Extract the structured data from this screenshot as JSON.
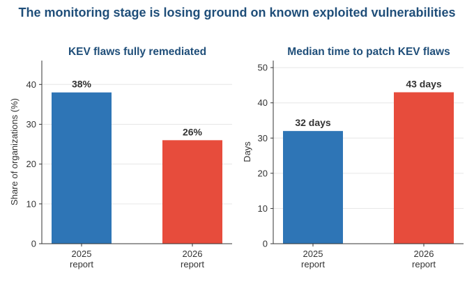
{
  "title": "The monitoring stage is losing ground on known exploited vulnerabilities",
  "chart_data": [
    {
      "type": "bar",
      "title": "KEV flaws fully remediated",
      "ylabel": "Share of organizations (%)",
      "xlabel": "",
      "categories": [
        [
          "2025",
          "report"
        ],
        [
          "2026",
          "report"
        ]
      ],
      "values": [
        38,
        26
      ],
      "data_labels": [
        "38%",
        "26%"
      ],
      "colors": [
        "#2e75b6",
        "#e74c3c"
      ],
      "ylim": [
        0,
        46
      ],
      "yticks": [
        0,
        10,
        20,
        30,
        40
      ],
      "grid": "horizontal"
    },
    {
      "type": "bar",
      "title": "Median time to patch KEV flaws",
      "ylabel": "Days",
      "xlabel": "",
      "categories": [
        [
          "2025",
          "report"
        ],
        [
          "2026",
          "report"
        ]
      ],
      "values": [
        32,
        43
      ],
      "data_labels": [
        "32 days",
        "43 days"
      ],
      "colors": [
        "#2e75b6",
        "#e74c3c"
      ],
      "ylim": [
        0,
        52
      ],
      "yticks": [
        0,
        10,
        20,
        30,
        40,
        50
      ],
      "grid": "horizontal"
    }
  ]
}
